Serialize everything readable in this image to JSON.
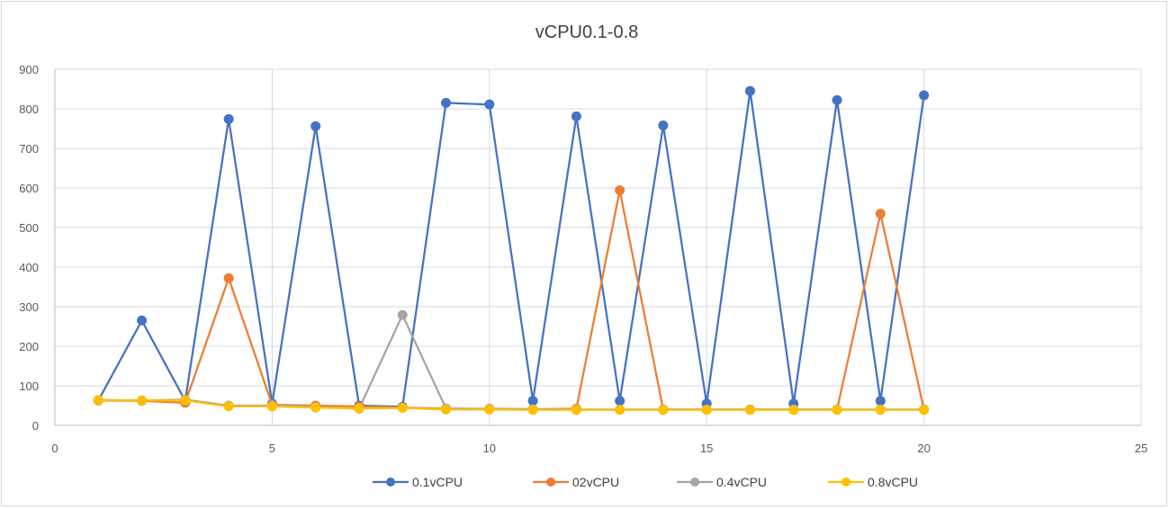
{
  "chart_data": {
    "type": "line",
    "title": "vCPU0.1-0.8",
    "xlabel": "",
    "ylabel": "",
    "xlim": [
      0,
      25
    ],
    "ylim": [
      0,
      900
    ],
    "xticks": [
      0,
      5,
      10,
      15,
      20,
      25
    ],
    "yticks": [
      0,
      100,
      200,
      300,
      400,
      500,
      600,
      700,
      800,
      900
    ],
    "grid": "both",
    "legend_position": "bottom",
    "x": [
      1,
      2,
      3,
      4,
      5,
      6,
      7,
      8,
      9,
      10,
      11,
      12,
      13,
      14,
      15,
      16,
      17,
      18,
      19,
      20
    ],
    "series": [
      {
        "name": "0.1vCPU",
        "color": "#4472c4",
        "values": [
          63,
          265,
          62,
          774,
          55,
          756,
          50,
          47,
          815,
          811,
          62,
          781,
          62,
          758,
          55,
          845,
          55,
          822,
          62,
          834
        ]
      },
      {
        "name": "02vCPU",
        "color": "#ed7d31",
        "values": [
          63,
          62,
          57,
          372,
          52,
          50,
          48,
          45,
          42,
          42,
          41,
          42,
          594,
          40,
          40,
          40,
          40,
          40,
          535,
          40
        ]
      },
      {
        "name": "0.4vCPU",
        "color": "#a5a5a5",
        "values": [
          64,
          63,
          65,
          50,
          50,
          47,
          42,
          279,
          43,
          41,
          41,
          40,
          40,
          40,
          40,
          40,
          40,
          40,
          40,
          40
        ]
      },
      {
        "name": "0.8vCPU",
        "color": "#ffc000",
        "values": [
          64,
          63,
          63,
          48,
          48,
          45,
          43,
          44,
          40,
          40,
          39,
          39,
          39,
          39,
          39,
          39,
          39,
          39,
          39,
          39
        ]
      }
    ]
  }
}
